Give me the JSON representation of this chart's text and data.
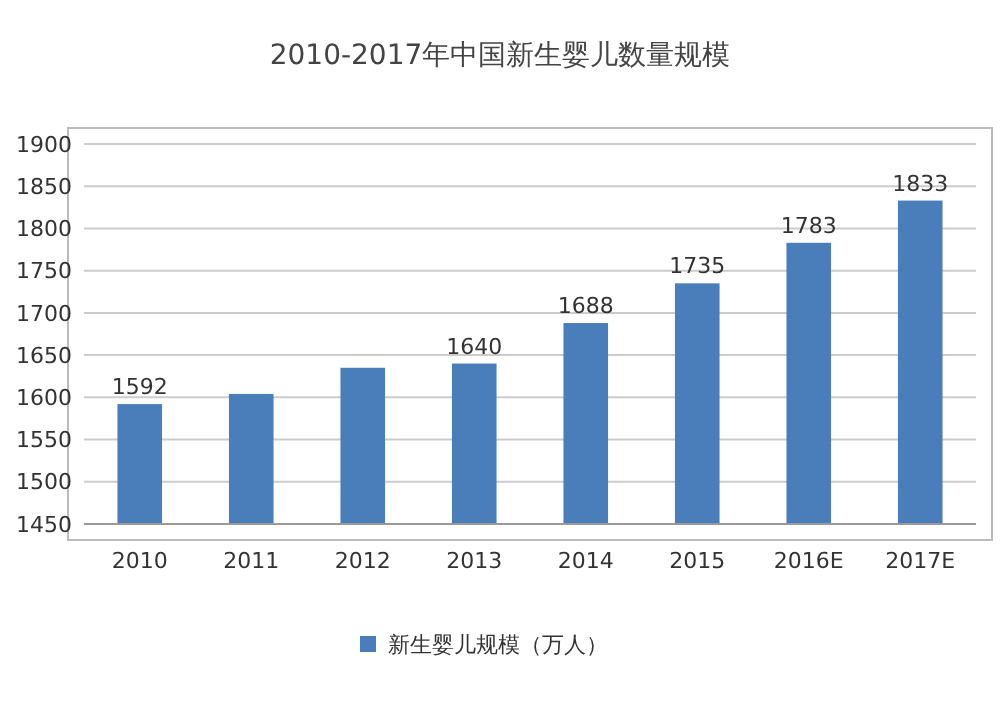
{
  "chart_data": {
    "type": "bar",
    "title": "2010-2017年中国新生婴儿数量规模",
    "categories": [
      "2010",
      "2011",
      "2012",
      "2013",
      "2014",
      "2015",
      "2016E",
      "2017E"
    ],
    "series": [
      {
        "name": "新生婴儿规模（万人）",
        "color": "#4a7ebb",
        "values": [
          1592,
          1604,
          1635,
          1640,
          1688,
          1735,
          1783,
          1833
        ],
        "value_labels": [
          "1592",
          null,
          null,
          "1640",
          "1688",
          "1735",
          "1783",
          "1833"
        ]
      }
    ],
    "ylim": [
      1450,
      1900
    ],
    "yticks": [
      1450,
      1500,
      1550,
      1600,
      1650,
      1700,
      1750,
      1800,
      1850,
      1900
    ],
    "grid": "y",
    "legend": "bottom"
  }
}
